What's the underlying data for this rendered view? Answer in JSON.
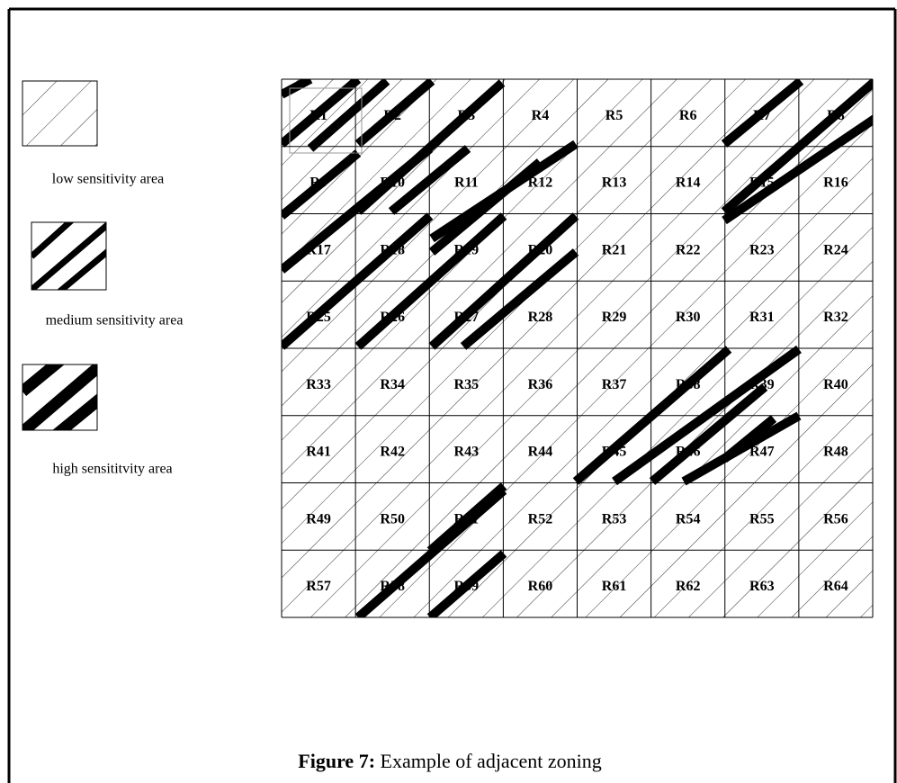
{
  "legend": [
    {
      "label": "low sensitivity area"
    },
    {
      "label": "medium sensitivity area"
    },
    {
      "label": "high sensititvity area"
    }
  ],
  "cells": [
    "R1",
    "R2",
    "R3",
    "R4",
    "R5",
    "R6",
    "R7",
    "R8",
    "R9",
    "R10",
    "R11",
    "R12",
    "R13",
    "R14",
    "R15",
    "R16",
    "R17",
    "R18",
    "R19",
    "R20",
    "R21",
    "R22",
    "R23",
    "R24",
    "R25",
    "R26",
    "R27",
    "R28",
    "R29",
    "R30",
    "R31",
    "R32",
    "R33",
    "R34",
    "R35",
    "R36",
    "R37",
    "R38",
    "R39",
    "R40",
    "R41",
    "R42",
    "R43",
    "R44",
    "R45",
    "R46",
    "R47",
    "R48",
    "R49",
    "R50",
    "R51",
    "R52",
    "R53",
    "R54",
    "R55",
    "R56",
    "R57",
    "R58",
    "R59",
    "R60",
    "R61",
    "R62",
    "R63",
    "R64"
  ],
  "caption": {
    "label": "Figure 7:",
    "text": " Example of adjacent zoning"
  }
}
